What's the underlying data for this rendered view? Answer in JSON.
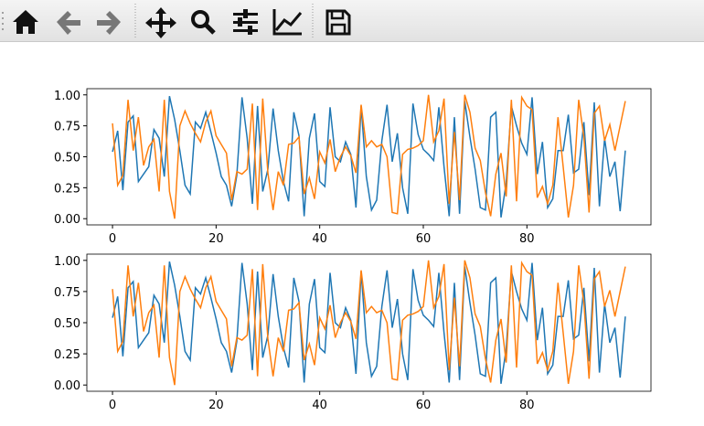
{
  "chart_data": [
    {
      "type": "line",
      "x": [
        0,
        1,
        2,
        3,
        4,
        5,
        6,
        7,
        8,
        9,
        10,
        11,
        12,
        13,
        14,
        15,
        16,
        17,
        18,
        19,
        20,
        21,
        22,
        23,
        24,
        25,
        26,
        27,
        28,
        29,
        30,
        31,
        32,
        33,
        34,
        35,
        36,
        37,
        38,
        39,
        40,
        41,
        42,
        43,
        44,
        45,
        46,
        47,
        48,
        49,
        50,
        51,
        52,
        53,
        54,
        55,
        56,
        57,
        58,
        59,
        60,
        61,
        62,
        63,
        64,
        65,
        66,
        67,
        68,
        69,
        70,
        71,
        72,
        73,
        74,
        75,
        76,
        77,
        78,
        79,
        80,
        81,
        82,
        83,
        84,
        85,
        86,
        87,
        88,
        89,
        90,
        91,
        92,
        93,
        94,
        95,
        96,
        97,
        98,
        99
      ],
      "series": [
        {
          "color": "#1f77b4",
          "values": [
            0.54,
            0.71,
            0.23,
            0.78,
            0.83,
            0.3,
            0.36,
            0.42,
            0.72,
            0.65,
            0.34,
            0.99,
            0.8,
            0.55,
            0.27,
            0.2,
            0.78,
            0.73,
            0.86,
            0.7,
            0.53,
            0.34,
            0.27,
            0.1,
            0.35,
            0.98,
            0.65,
            0.12,
            0.91,
            0.22,
            0.4,
            0.89,
            0.55,
            0.3,
            0.14,
            0.86,
            0.67,
            0.02,
            0.65,
            0.85,
            0.3,
            0.26,
            0.9,
            0.5,
            0.46,
            0.62,
            0.52,
            0.09,
            0.91,
            0.34,
            0.07,
            0.15,
            0.63,
            0.92,
            0.46,
            0.69,
            0.25,
            0.04,
            0.93,
            0.68,
            0.56,
            0.52,
            0.47,
            0.9,
            0.42,
            0.02,
            0.82,
            0.04,
            0.95,
            0.66,
            0.4,
            0.09,
            0.07,
            0.82,
            0.86,
            0.01,
            0.29,
            0.91,
            0.75,
            0.61,
            0.52,
            0.98,
            0.36,
            0.62,
            0.09,
            0.16,
            0.55,
            0.55,
            0.84,
            0.37,
            0.4,
            0.78,
            0.19,
            0.94,
            0.1,
            0.65,
            0.34,
            0.46,
            0.06,
            0.55
          ]
        },
        {
          "color": "#ff7f0e",
          "values": [
            0.77,
            0.27,
            0.35,
            0.96,
            0.55,
            0.82,
            0.43,
            0.58,
            0.64,
            0.22,
            0.96,
            0.22,
            0.0,
            0.75,
            0.87,
            0.77,
            0.69,
            0.62,
            0.78,
            0.87,
            0.67,
            0.6,
            0.53,
            0.15,
            0.38,
            0.36,
            0.4,
            0.93,
            0.07,
            0.97,
            0.37,
            0.07,
            0.38,
            0.27,
            0.6,
            0.61,
            0.66,
            0.2,
            0.33,
            0.16,
            0.54,
            0.45,
            0.64,
            0.38,
            0.5,
            0.58,
            0.51,
            0.37,
            0.92,
            0.58,
            0.63,
            0.58,
            0.6,
            0.5,
            0.05,
            0.04,
            0.52,
            0.56,
            0.57,
            0.59,
            0.63,
            1.0,
            0.62,
            0.71,
            0.97,
            0.12,
            0.7,
            0.15,
            1.0,
            0.86,
            0.57,
            0.47,
            0.21,
            0.02,
            0.36,
            0.53,
            0.18,
            0.96,
            0.14,
            0.98,
            0.91,
            0.88,
            0.17,
            0.26,
            0.12,
            0.27,
            0.82,
            0.42,
            0.01,
            0.27,
            0.96,
            0.66,
            0.05,
            0.85,
            0.91,
            0.63,
            0.76,
            0.55,
            0.75,
            0.95
          ]
        }
      ],
      "xlim": [
        -4.95,
        103.95
      ],
      "xticks": [
        0,
        20,
        40,
        60,
        80
      ],
      "ylim": [
        -0.05,
        1.05
      ],
      "yticks": [
        {
          "value": 0,
          "label": "0.00"
        },
        {
          "value": 0.25,
          "label": "0.25"
        },
        {
          "value": 0.5,
          "label": "0.50"
        },
        {
          "value": 0.75,
          "label": "0.75"
        },
        {
          "value": 1,
          "label": "1.00"
        }
      ]
    },
    {
      "type": "line",
      "x": [
        0,
        1,
        2,
        3,
        4,
        5,
        6,
        7,
        8,
        9,
        10,
        11,
        12,
        13,
        14,
        15,
        16,
        17,
        18,
        19,
        20,
        21,
        22,
        23,
        24,
        25,
        26,
        27,
        28,
        29,
        30,
        31,
        32,
        33,
        34,
        35,
        36,
        37,
        38,
        39,
        40,
        41,
        42,
        43,
        44,
        45,
        46,
        47,
        48,
        49,
        50,
        51,
        52,
        53,
        54,
        55,
        56,
        57,
        58,
        59,
        60,
        61,
        62,
        63,
        64,
        65,
        66,
        67,
        68,
        69,
        70,
        71,
        72,
        73,
        74,
        75,
        76,
        77,
        78,
        79,
        80,
        81,
        82,
        83,
        84,
        85,
        86,
        87,
        88,
        89,
        90,
        91,
        92,
        93,
        94,
        95,
        96,
        97,
        98,
        99
      ],
      "series": [
        {
          "color": "#1f77b4",
          "values": [
            0.54,
            0.71,
            0.23,
            0.78,
            0.83,
            0.3,
            0.36,
            0.42,
            0.72,
            0.65,
            0.34,
            0.99,
            0.8,
            0.55,
            0.27,
            0.2,
            0.78,
            0.73,
            0.86,
            0.7,
            0.53,
            0.34,
            0.27,
            0.1,
            0.35,
            0.98,
            0.65,
            0.12,
            0.91,
            0.22,
            0.4,
            0.89,
            0.55,
            0.3,
            0.14,
            0.86,
            0.67,
            0.02,
            0.65,
            0.85,
            0.3,
            0.26,
            0.9,
            0.5,
            0.46,
            0.62,
            0.52,
            0.09,
            0.91,
            0.34,
            0.07,
            0.15,
            0.63,
            0.92,
            0.46,
            0.69,
            0.25,
            0.04,
            0.93,
            0.68,
            0.56,
            0.52,
            0.47,
            0.9,
            0.42,
            0.02,
            0.82,
            0.04,
            0.95,
            0.66,
            0.4,
            0.09,
            0.07,
            0.82,
            0.86,
            0.01,
            0.29,
            0.91,
            0.75,
            0.61,
            0.52,
            0.98,
            0.36,
            0.62,
            0.09,
            0.16,
            0.55,
            0.55,
            0.84,
            0.37,
            0.4,
            0.78,
            0.19,
            0.94,
            0.1,
            0.65,
            0.34,
            0.46,
            0.06,
            0.55
          ]
        },
        {
          "color": "#ff7f0e",
          "values": [
            0.77,
            0.27,
            0.35,
            0.96,
            0.55,
            0.82,
            0.43,
            0.58,
            0.64,
            0.22,
            0.96,
            0.22,
            0.0,
            0.75,
            0.87,
            0.77,
            0.69,
            0.62,
            0.78,
            0.87,
            0.67,
            0.6,
            0.53,
            0.15,
            0.38,
            0.36,
            0.4,
            0.93,
            0.07,
            0.97,
            0.37,
            0.07,
            0.38,
            0.27,
            0.6,
            0.61,
            0.66,
            0.2,
            0.33,
            0.16,
            0.54,
            0.45,
            0.64,
            0.38,
            0.5,
            0.58,
            0.51,
            0.37,
            0.92,
            0.58,
            0.63,
            0.58,
            0.6,
            0.5,
            0.05,
            0.04,
            0.52,
            0.56,
            0.57,
            0.59,
            0.63,
            1.0,
            0.62,
            0.71,
            0.97,
            0.12,
            0.7,
            0.15,
            1.0,
            0.86,
            0.57,
            0.47,
            0.21,
            0.02,
            0.36,
            0.53,
            0.18,
            0.96,
            0.14,
            0.98,
            0.91,
            0.88,
            0.17,
            0.26,
            0.12,
            0.27,
            0.82,
            0.42,
            0.01,
            0.27,
            0.96,
            0.66,
            0.05,
            0.85,
            0.91,
            0.63,
            0.76,
            0.55,
            0.75,
            0.95
          ]
        }
      ],
      "xlim": [
        -4.95,
        103.95
      ],
      "xticks": [
        0,
        20,
        40,
        60,
        80
      ],
      "ylim": [
        -0.05,
        1.05
      ],
      "yticks": [
        {
          "value": 0,
          "label": "0.00"
        },
        {
          "value": 0.25,
          "label": "0.25"
        },
        {
          "value": 0.5,
          "label": "0.50"
        },
        {
          "value": 0.75,
          "label": "0.75"
        },
        {
          "value": 1,
          "label": "1.00"
        }
      ]
    }
  ]
}
